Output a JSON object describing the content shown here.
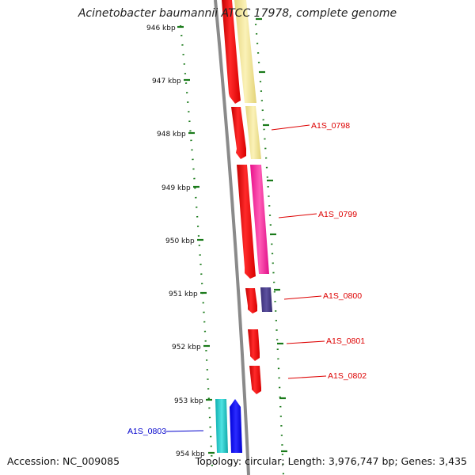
{
  "title": "Acinetobacter baumannii ATCC 17978, complete genome",
  "footer": {
    "accession": "Accession: NC_009085",
    "topology": "Topology: circular; Length: 3,976,747 bp; Genes: 3,435"
  },
  "ruler": {
    "unit": "kbp",
    "ticks": [
      "946 kbp",
      "947 kbp",
      "948 kbp",
      "949 kbp",
      "950 kbp",
      "951 kbp",
      "952 kbp",
      "953 kbp",
      "954 kbp"
    ]
  },
  "gene_labels": [
    {
      "name": "A1S_0798",
      "color": "#dd0000"
    },
    {
      "name": "A1S_0799",
      "color": "#dd0000"
    },
    {
      "name": "A1S_0800",
      "color": "#dd0000"
    },
    {
      "name": "A1S_0801",
      "color": "#dd0000"
    },
    {
      "name": "A1S_0802",
      "color": "#dd0000"
    },
    {
      "name": "A1S_0803",
      "color": "#0000cc"
    }
  ],
  "colors": {
    "backbone": "#8a8a8a",
    "tick": "#1a7a1a",
    "cds_red": "#ff0000",
    "pale_yellow": "#f2e79a",
    "pink": "#ff3aa0",
    "navy": "#4a3f8a",
    "cyan": "#1ec8c8",
    "blue": "#0000ff"
  }
}
